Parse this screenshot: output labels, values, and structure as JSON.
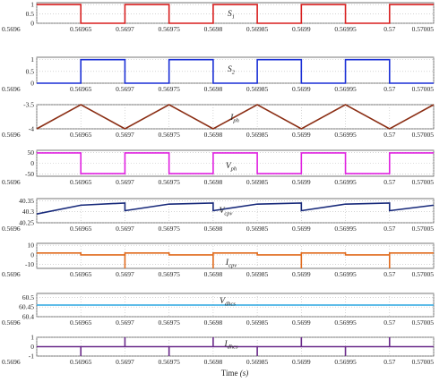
{
  "chart_data": [
    {
      "type": "line",
      "label": "S",
      "label_sub": "1",
      "x": [
        0.5696,
        0.56965,
        0.56965,
        0.5697,
        0.5697,
        0.56975,
        0.56975,
        0.5698,
        0.5698,
        0.56985,
        0.56985,
        0.5699,
        0.5699,
        0.56995,
        0.56995,
        0.57,
        0.57,
        0.57005
      ],
      "y": [
        1,
        1,
        0,
        0,
        1,
        1,
        0,
        0,
        1,
        1,
        0,
        0,
        1,
        1,
        0,
        0,
        1,
        1
      ],
      "ylim": [
        0,
        1.1
      ],
      "yticks": [
        1,
        0.5,
        0
      ],
      "ytick_labels": [
        "1",
        "0.5",
        "0"
      ],
      "color": "#d81f1f"
    },
    {
      "type": "line",
      "label": "S",
      "label_sub": "2",
      "x": [
        0.5696,
        0.56965,
        0.56965,
        0.5697,
        0.5697,
        0.56975,
        0.56975,
        0.5698,
        0.5698,
        0.56985,
        0.56985,
        0.5699,
        0.5699,
        0.56995,
        0.56995,
        0.57,
        0.57,
        0.57005
      ],
      "y": [
        0,
        0,
        1,
        1,
        0,
        0,
        1,
        1,
        0,
        0,
        1,
        1,
        0,
        0,
        1,
        1,
        0,
        0
      ],
      "ylim": [
        0,
        1.1
      ],
      "yticks": [
        1,
        0.5,
        0
      ],
      "ytick_labels": [
        "1",
        "0.5",
        "0"
      ],
      "color": "#1a2fd6"
    },
    {
      "type": "line",
      "label": "I",
      "label_sub": "ph",
      "x": [
        0.5696,
        0.56965,
        0.5697,
        0.56975,
        0.5698,
        0.56985,
        0.5699,
        0.56995,
        0.57,
        0.57005
      ],
      "y": [
        -4.0,
        -3.5,
        -4.0,
        -3.5,
        -4.0,
        -3.5,
        -4.0,
        -3.5,
        -4.0,
        -3.5
      ],
      "ylim": [
        -4,
        -3.5
      ],
      "yticks": [
        -3.5,
        -4
      ],
      "ytick_labels": [
        "-3.5",
        "-4"
      ],
      "color": "#8b2e14"
    },
    {
      "type": "line",
      "label": "V",
      "label_sub": "ph",
      "x": [
        0.5696,
        0.56965,
        0.56965,
        0.5697,
        0.5697,
        0.56975,
        0.56975,
        0.5698,
        0.5698,
        0.56985,
        0.56985,
        0.5699,
        0.5699,
        0.56995,
        0.56995,
        0.57,
        0.57,
        0.57005
      ],
      "y": [
        48,
        48,
        -48,
        -48,
        48,
        48,
        -48,
        -48,
        48,
        48,
        -48,
        -48,
        48,
        48,
        -48,
        -48,
        48,
        48
      ],
      "ylim": [
        -60,
        60
      ],
      "yticks": [
        50,
        0,
        -50
      ],
      "ytick_labels": [
        "50",
        "0",
        "-50"
      ],
      "color": "#e020e0"
    },
    {
      "type": "line",
      "label": "V",
      "label_sub": "cpv",
      "x": [
        0.5696,
        0.56965,
        0.5697,
        0.5697,
        0.56975,
        0.5698,
        0.5698,
        0.56985,
        0.5699,
        0.5699,
        0.56995,
        0.57,
        0.57,
        0.57005
      ],
      "y": [
        40.29,
        40.33,
        40.34,
        40.305,
        40.335,
        40.34,
        40.305,
        40.335,
        40.34,
        40.305,
        40.335,
        40.34,
        40.305,
        40.33
      ],
      "ylim": [
        40.25,
        40.36
      ],
      "yticks": [
        40.35,
        40.3,
        40.25
      ],
      "ytick_labels": [
        "40.35",
        "40.3",
        "40.25"
      ],
      "color": "#17297a"
    },
    {
      "type": "line",
      "label": "I",
      "label_sub": "cpv",
      "x": [
        0.5696,
        0.56965,
        0.56965,
        0.5697,
        0.5697,
        0.5697,
        0.56975,
        0.56975,
        0.5698,
        0.5698,
        0.5698,
        0.56985,
        0.56985,
        0.5699,
        0.5699,
        0.5699,
        0.56995,
        0.56995,
        0.57,
        0.57,
        0.57,
        0.57005
      ],
      "y": [
        2,
        2,
        0,
        0,
        -14,
        2,
        2,
        0,
        0,
        -14,
        2,
        2,
        0,
        0,
        -14,
        2,
        2,
        0,
        0,
        -14,
        2,
        2
      ],
      "ylim": [
        -14,
        12
      ],
      "yticks": [
        10,
        0,
        -10
      ],
      "ytick_labels": [
        "10",
        "0",
        "-10"
      ],
      "color": "#e06a1c"
    },
    {
      "type": "line",
      "label": "V",
      "label_sub": "dhcs",
      "x": [
        0.5696,
        0.57005
      ],
      "y": [
        60.46,
        60.46
      ],
      "ylim": [
        60.4,
        60.52
      ],
      "yticks": [
        60.5,
        60.45,
        60.4
      ],
      "ytick_labels": [
        "60.5",
        "60.45",
        "60.4"
      ],
      "color": "#2aa5e0"
    },
    {
      "type": "line",
      "label": "I",
      "label_sub": "dhcs",
      "x": [
        0.5696,
        0.56965,
        0.56965,
        0.56965,
        0.5697,
        0.5697,
        0.5697,
        0.56975,
        0.56975,
        0.56975,
        0.5698,
        0.5698,
        0.5698,
        0.56985,
        0.56985,
        0.56985,
        0.5699,
        0.5699,
        0.5699,
        0.56995,
        0.56995,
        0.56995,
        0.57,
        0.57,
        0.57,
        0.57005
      ],
      "y": [
        0,
        0,
        -1,
        0,
        0,
        1,
        0,
        0,
        -1,
        0,
        0,
        1,
        0,
        0,
        -1,
        0,
        0,
        1,
        0,
        0,
        -1,
        0,
        0,
        1,
        0,
        0
      ],
      "ylim": [
        -1,
        1
      ],
      "yticks": [
        1,
        0,
        -1
      ],
      "ytick_labels": [
        "1",
        "0",
        "-1"
      ],
      "color": "#6a2a8a"
    }
  ],
  "x_axis": {
    "xlim": [
      0.5696,
      0.57005
    ],
    "ticks": [
      0.5696,
      0.56965,
      0.5697,
      0.56975,
      0.5698,
      0.56985,
      0.5699,
      0.56995,
      0.57,
      0.57005
    ],
    "tick_labels": [
      "0.5696",
      "0.56965",
      "0.5697",
      "0.56975",
      "0.5698",
      "0.56985",
      "0.5699",
      "0.56995",
      "0.57",
      "0.57005"
    ]
  },
  "xlabel_text": "Time ",
  "xlabel_unit": "(s)"
}
